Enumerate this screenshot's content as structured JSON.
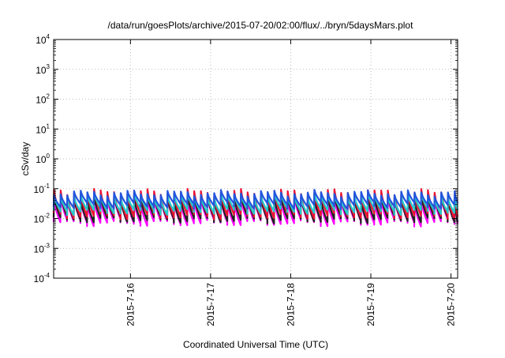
{
  "chart_data": {
    "type": "line",
    "title": "/data/run/goesPlots/archive/2015-07-20/02:00/flux/../bryn/5daysMars.plot",
    "xlabel": "Coordinated Universal Time (UTC)",
    "ylabel": "cSv/day",
    "y_scale": "log",
    "ylim": [
      0.0001,
      10000
    ],
    "y_ticks": [
      {
        "value": 0.0001,
        "base": "10",
        "exp": "-4"
      },
      {
        "value": 0.001,
        "base": "10",
        "exp": "-3"
      },
      {
        "value": 0.01,
        "base": "10",
        "exp": "-2"
      },
      {
        "value": 0.1,
        "base": "10",
        "exp": "-1"
      },
      {
        "value": 1,
        "base": "10",
        "exp": "0"
      },
      {
        "value": 10,
        "base": "10",
        "exp": "1"
      },
      {
        "value": 100,
        "base": "10",
        "exp": "2"
      },
      {
        "value": 1000,
        "base": "10",
        "exp": "3"
      },
      {
        "value": 10000,
        "base": "10",
        "exp": "4"
      }
    ],
    "xlim": [
      "2015-07-15T01:00",
      "2015-07-20T02:00"
    ],
    "x_ticks": [
      {
        "value": "2015-07-16T00:00",
        "label": "2015-7-16"
      },
      {
        "value": "2015-07-17T00:00",
        "label": "2015-7-17"
      },
      {
        "value": "2015-07-18T00:00",
        "label": "2015-7-18"
      },
      {
        "value": "2015-07-19T00:00",
        "label": "2015-7-19"
      },
      {
        "value": "2015-07-20T00:00",
        "label": "2015-7-20"
      }
    ],
    "grid": "dotted, at major ticks",
    "pattern_period_hours": 2,
    "series": [
      {
        "color": "#ff00ff",
        "peak": 0.045,
        "trough": 0.0075
      },
      {
        "color": "#222222",
        "peak": 0.055,
        "trough": 0.0095
      },
      {
        "color": "#ee1133",
        "peak": 0.078,
        "trough": 0.013
      },
      {
        "color": "#22cccc",
        "peak": 0.06,
        "trough": 0.018
      },
      {
        "color": "#2255dd",
        "peak": 0.072,
        "trough": 0.028
      }
    ]
  }
}
